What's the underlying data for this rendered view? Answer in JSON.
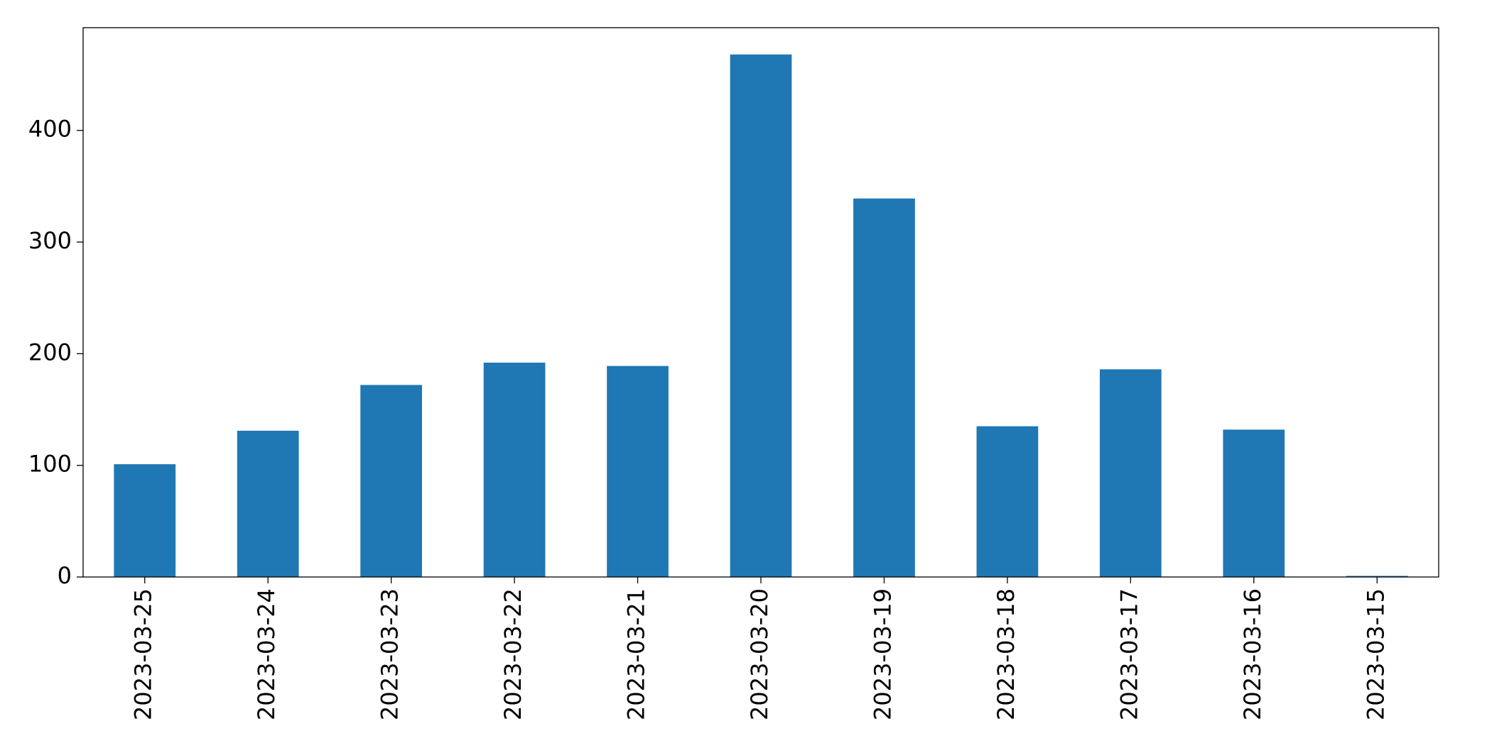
{
  "chart_data": {
    "type": "bar",
    "categories": [
      "2023-03-25",
      "2023-03-24",
      "2023-03-23",
      "2023-03-22",
      "2023-03-21",
      "2023-03-20",
      "2023-03-19",
      "2023-03-18",
      "2023-03-17",
      "2023-03-16",
      "2023-03-15"
    ],
    "values": [
      101,
      131,
      172,
      192,
      189,
      468,
      339,
      135,
      186,
      132,
      1
    ],
    "color": "#1f77b4",
    "ylim": [
      0,
      492
    ],
    "yticks": [
      0,
      100,
      200,
      300,
      400
    ],
    "grid": false
  }
}
